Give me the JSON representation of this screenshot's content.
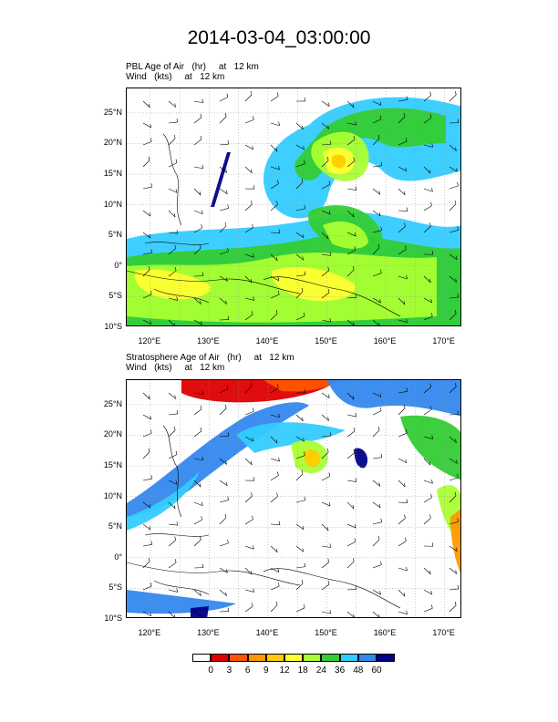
{
  "title": "2014-03-04_03:00:00",
  "panels": [
    {
      "title_line1": "PBL Age of Air   (hr)     at   12 km",
      "title_line2": "Wind   (kts)     at   12 km"
    },
    {
      "title_line1": "Stratosphere Age of Air   (hr)     at   12 km",
      "title_line2": "Wind   (kts)     at   12 km"
    }
  ],
  "axes": {
    "lat_ticks": [
      "25°N",
      "20°N",
      "15°N",
      "10°N",
      "5°N",
      "0°",
      "5°S",
      "10°S"
    ],
    "lon_ticks": [
      "120°E",
      "130°E",
      "140°E",
      "150°E",
      "160°E",
      "170°E"
    ]
  },
  "colorbar": {
    "colors": [
      "#ffffff",
      "#dd0000",
      "#ff5500",
      "#ff9900",
      "#ffcc00",
      "#ffff33",
      "#aaff33",
      "#33cc33",
      "#33ccff",
      "#3388ee",
      "#000088"
    ],
    "labels": [
      "0",
      "3",
      "6",
      "9",
      "12",
      "18",
      "24",
      "36",
      "48",
      "60"
    ]
  },
  "map": {
    "lon_range": [
      116,
      173
    ],
    "lat_range": [
      -10,
      29
    ],
    "grid": "dotted",
    "legend_position": "bottom-center"
  }
}
